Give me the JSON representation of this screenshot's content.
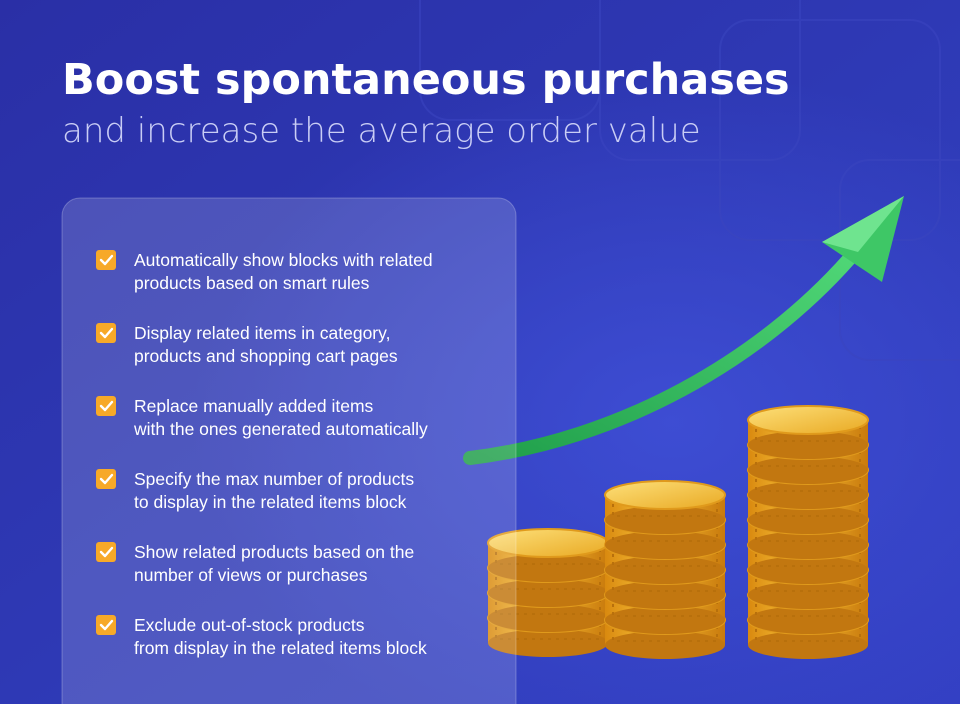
{
  "header": {
    "title": "Boost spontaneous purchases",
    "subtitle": "and increase the average order value"
  },
  "features": [
    {
      "lines": [
        "Automatically show blocks with related",
        "products based on smart rules"
      ]
    },
    {
      "lines": [
        "Display related items in category,",
        "products and shopping cart pages"
      ]
    },
    {
      "lines": [
        "Replace manually added items",
        "with the ones generated automatically"
      ]
    },
    {
      "lines": [
        "Specify the max number of products",
        "to display in the related items block"
      ]
    },
    {
      "lines": [
        "Show related products based on the",
        "number of views or purchases"
      ]
    },
    {
      "lines": [
        "Exclude out-of-stock products",
        "from display in the related items block"
      ]
    }
  ]
}
